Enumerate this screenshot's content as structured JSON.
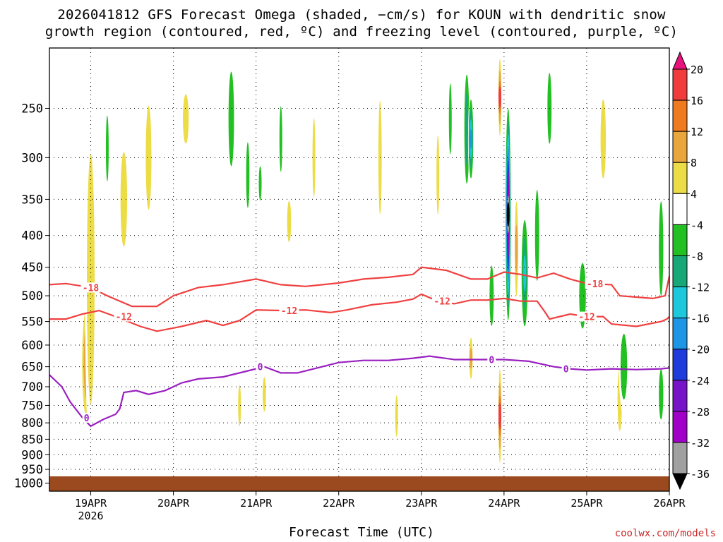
{
  "chart_data": {
    "type": "heatmap",
    "title_line1": "2026041812 GFS Forecast Omega (shaded, −cm/s) for KOUN with dendritic snow",
    "title_line2": "growth region (contoured, red, ºC) and freezing level (contoured, purple, ºC)",
    "xlabel": "Forecast Time (UTC)",
    "credit": "coolwx.com/models",
    "x_ticks": [
      {
        "day": 19,
        "label": "19APR",
        "sub": "2026"
      },
      {
        "day": 20,
        "label": "20APR"
      },
      {
        "day": 21,
        "label": "21APR"
      },
      {
        "day": 22,
        "label": "22APR"
      },
      {
        "day": 23,
        "label": "23APR"
      },
      {
        "day": 24,
        "label": "24APR"
      },
      {
        "day": 25,
        "label": "25APR"
      },
      {
        "day": 26,
        "label": "26APR"
      }
    ],
    "x_range_days": [
      18.5,
      26.0
    ],
    "y_axis": {
      "type": "log-pressure",
      "range_hPa": [
        1030,
        200
      ],
      "ticks": [
        250,
        300,
        350,
        400,
        450,
        500,
        550,
        600,
        650,
        700,
        750,
        800,
        850,
        900,
        950,
        1000
      ]
    },
    "colorbar": {
      "labels": [
        20,
        16,
        12,
        8,
        4,
        -4,
        -8,
        -12,
        -16,
        -20,
        -24,
        -28,
        -32,
        -36
      ],
      "bins": [
        {
          "lo": 20,
          "hi": 24,
          "color": "#e8127d"
        },
        {
          "lo": 16,
          "hi": 20,
          "color": "#f03c3c"
        },
        {
          "lo": 12,
          "hi": 16,
          "color": "#f07a20"
        },
        {
          "lo": 8,
          "hi": 12,
          "color": "#e8a63c"
        },
        {
          "lo": 4,
          "hi": 8,
          "color": "#ecdc46"
        },
        {
          "lo": -4,
          "hi": 4,
          "color": "#ffffff"
        },
        {
          "lo": -8,
          "hi": -4,
          "color": "#22c022"
        },
        {
          "lo": -12,
          "hi": -8,
          "color": "#18a878"
        },
        {
          "lo": -16,
          "hi": -12,
          "color": "#1ec8dc"
        },
        {
          "lo": -20,
          "hi": -16,
          "color": "#1e96e6"
        },
        {
          "lo": -24,
          "hi": -20,
          "color": "#1e3cdc"
        },
        {
          "lo": -28,
          "hi": -24,
          "color": "#7814c8"
        },
        {
          "lo": -32,
          "hi": -28,
          "color": "#a000c8"
        },
        {
          "lo": -36,
          "hi": -32,
          "color": "#a0a0a0"
        },
        {
          "lo": -40,
          "hi": -36,
          "color": "#000000"
        }
      ]
    },
    "omega_blobs": [
      {
        "day": 18.95,
        "p": 640,
        "dd": 0.09,
        "dp": 1.4,
        "v": 10
      },
      {
        "day": 19.0,
        "p": 470,
        "dd": 0.07,
        "dp": 2.0,
        "v": 6
      },
      {
        "day": 19.4,
        "p": 350,
        "dd": 0.06,
        "dp": 1.3,
        "v": 6
      },
      {
        "day": 19.7,
        "p": 300,
        "dd": 0.06,
        "dp": 1.4,
        "v": 7
      },
      {
        "day": 20.15,
        "p": 260,
        "dd": 0.07,
        "dp": 1.2,
        "v": 8
      },
      {
        "day": 19.2,
        "p": 290,
        "dd": 0.025,
        "dp": 1.2,
        "v": -6
      },
      {
        "day": 20.7,
        "p": 260,
        "dd": 0.05,
        "dp": 1.3,
        "v": -6
      },
      {
        "day": 20.9,
        "p": 320,
        "dd": 0.03,
        "dp": 1.2,
        "v": -6
      },
      {
        "day": 21.05,
        "p": 330,
        "dd": 0.02,
        "dp": 1.1,
        "v": -6
      },
      {
        "day": 21.3,
        "p": 280,
        "dd": 0.02,
        "dp": 1.2,
        "v": -6
      },
      {
        "day": 21.4,
        "p": 380,
        "dd": 0.03,
        "dp": 1.1,
        "v": 5
      },
      {
        "day": 21.7,
        "p": 300,
        "dd": 0.02,
        "dp": 1.2,
        "v": 5
      },
      {
        "day": 20.8,
        "p": 750,
        "dd": 0.02,
        "dp": 1.1,
        "v": 5
      },
      {
        "day": 21.1,
        "p": 720,
        "dd": 0.03,
        "dp": 1.1,
        "v": 6
      },
      {
        "day": 22.5,
        "p": 300,
        "dd": 0.025,
        "dp": 1.3,
        "v": 5
      },
      {
        "day": 22.7,
        "p": 780,
        "dd": 0.02,
        "dp": 1.1,
        "v": 5
      },
      {
        "day": 23.2,
        "p": 320,
        "dd": 0.02,
        "dp": 1.2,
        "v": 5
      },
      {
        "day": 23.35,
        "p": 260,
        "dd": 0.03,
        "dp": 1.3,
        "v": -8
      },
      {
        "day": 23.55,
        "p": 270,
        "dd": 0.05,
        "dp": 1.4,
        "v": -10
      },
      {
        "day": 23.6,
        "p": 280,
        "dd": 0.035,
        "dp": 1.2,
        "v": -20
      },
      {
        "day": 23.6,
        "p": 630,
        "dd": 0.03,
        "dp": 1.12,
        "v": 12
      },
      {
        "day": 23.85,
        "p": 500,
        "dd": 0.05,
        "dp": 1.25,
        "v": -8
      },
      {
        "day": 23.95,
        "p": 780,
        "dd": 0.02,
        "dp": 1.25,
        "v": 18
      },
      {
        "day": 23.95,
        "p": 240,
        "dd": 0.02,
        "dp": 1.2,
        "v": 18
      },
      {
        "day": 24.05,
        "p": 370,
        "dd": 0.035,
        "dp": 1.55,
        "v": -38
      },
      {
        "day": 24.15,
        "p": 420,
        "dd": 0.03,
        "dp": 1.3,
        "v": 12
      },
      {
        "day": 24.25,
        "p": 460,
        "dd": 0.05,
        "dp": 1.3,
        "v": -16
      },
      {
        "day": 24.4,
        "p": 400,
        "dd": 0.05,
        "dp": 1.4,
        "v": -8
      },
      {
        "day": 24.55,
        "p": 250,
        "dd": 0.05,
        "dp": 1.3,
        "v": -8
      },
      {
        "day": 24.95,
        "p": 500,
        "dd": 0.06,
        "dp": 1.2,
        "v": -6
      },
      {
        "day": 25.4,
        "p": 730,
        "dd": 0.04,
        "dp": 1.2,
        "v": 6
      },
      {
        "day": 25.45,
        "p": 650,
        "dd": 0.06,
        "dp": 1.2,
        "v": -6
      },
      {
        "day": 25.9,
        "p": 420,
        "dd": 0.04,
        "dp": 1.3,
        "v": -6
      },
      {
        "day": 25.2,
        "p": 280,
        "dd": 0.04,
        "dp": 1.2,
        "v": 5
      },
      {
        "day": 25.9,
        "p": 720,
        "dd": 0.04,
        "dp": 1.15,
        "v": -6
      }
    ],
    "contours": [
      {
        "label": "-18",
        "color": "#f04040",
        "label_at": [
          19.0,
          25.1
        ],
        "points": [
          [
            18.5,
            480
          ],
          [
            18.7,
            478
          ],
          [
            19.0,
            485
          ],
          [
            19.2,
            500
          ],
          [
            19.5,
            520
          ],
          [
            19.8,
            520
          ],
          [
            20.0,
            500
          ],
          [
            20.3,
            485
          ],
          [
            20.6,
            480
          ],
          [
            21.0,
            470
          ],
          [
            21.3,
            480
          ],
          [
            21.6,
            483
          ],
          [
            22.0,
            477
          ],
          [
            22.3,
            470
          ],
          [
            22.6,
            467
          ],
          [
            22.9,
            462
          ],
          [
            23.0,
            450
          ],
          [
            23.3,
            455
          ],
          [
            23.6,
            470
          ],
          [
            23.8,
            470
          ],
          [
            24.0,
            458
          ],
          [
            24.2,
            462
          ],
          [
            24.4,
            468
          ],
          [
            24.6,
            460
          ],
          [
            24.8,
            470
          ],
          [
            25.0,
            478
          ],
          [
            25.3,
            480
          ],
          [
            25.4,
            500
          ],
          [
            25.8,
            505
          ],
          [
            25.95,
            500
          ],
          [
            26.0,
            465
          ]
        ]
      },
      {
        "label": "-12",
        "color": "#f04040",
        "label_at": [
          19.4,
          21.4,
          23.25,
          25.0
        ],
        "points": [
          [
            18.5,
            545
          ],
          [
            18.7,
            545
          ],
          [
            18.9,
            535
          ],
          [
            19.1,
            528
          ],
          [
            19.3,
            540
          ],
          [
            19.6,
            560
          ],
          [
            19.8,
            570
          ],
          [
            20.1,
            560
          ],
          [
            20.4,
            548
          ],
          [
            20.6,
            558
          ],
          [
            20.8,
            548
          ],
          [
            21.0,
            527
          ],
          [
            21.3,
            528
          ],
          [
            21.6,
            527
          ],
          [
            21.9,
            532
          ],
          [
            22.1,
            527
          ],
          [
            22.4,
            517
          ],
          [
            22.7,
            512
          ],
          [
            22.9,
            506
          ],
          [
            23.0,
            497
          ],
          [
            23.2,
            510
          ],
          [
            23.4,
            515
          ],
          [
            23.6,
            508
          ],
          [
            23.8,
            508
          ],
          [
            24.0,
            505
          ],
          [
            24.2,
            510
          ],
          [
            24.4,
            510
          ],
          [
            24.5,
            532
          ],
          [
            24.55,
            545
          ],
          [
            24.8,
            535
          ],
          [
            25.0,
            540
          ],
          [
            25.2,
            540
          ],
          [
            25.3,
            555
          ],
          [
            25.6,
            560
          ],
          [
            25.9,
            550
          ],
          [
            25.97,
            545
          ],
          [
            26.0,
            540
          ]
        ]
      },
      {
        "label": "0",
        "color": "#9a20c0",
        "label_at": [
          18.95,
          21.05,
          23.85,
          24.75
        ],
        "points": [
          [
            18.5,
            670
          ],
          [
            18.65,
            700
          ],
          [
            18.75,
            740
          ],
          [
            18.9,
            785
          ],
          [
            19.0,
            810
          ],
          [
            19.15,
            790
          ],
          [
            19.3,
            775
          ],
          [
            19.35,
            760
          ],
          [
            19.4,
            715
          ],
          [
            19.55,
            710
          ],
          [
            19.7,
            720
          ],
          [
            19.9,
            710
          ],
          [
            20.1,
            690
          ],
          [
            20.3,
            680
          ],
          [
            20.6,
            675
          ],
          [
            20.9,
            660
          ],
          [
            21.1,
            650
          ],
          [
            21.3,
            665
          ],
          [
            21.5,
            665
          ],
          [
            21.7,
            655
          ],
          [
            22.0,
            640
          ],
          [
            22.3,
            635
          ],
          [
            22.6,
            635
          ],
          [
            22.9,
            630
          ],
          [
            23.1,
            625
          ],
          [
            23.4,
            633
          ],
          [
            23.7,
            633
          ],
          [
            24.0,
            633
          ],
          [
            24.3,
            637
          ],
          [
            24.6,
            650
          ],
          [
            24.8,
            655
          ],
          [
            25.0,
            658
          ],
          [
            25.3,
            655
          ],
          [
            25.6,
            657
          ],
          [
            25.9,
            655
          ],
          [
            26.0,
            653
          ]
        ]
      }
    ]
  }
}
